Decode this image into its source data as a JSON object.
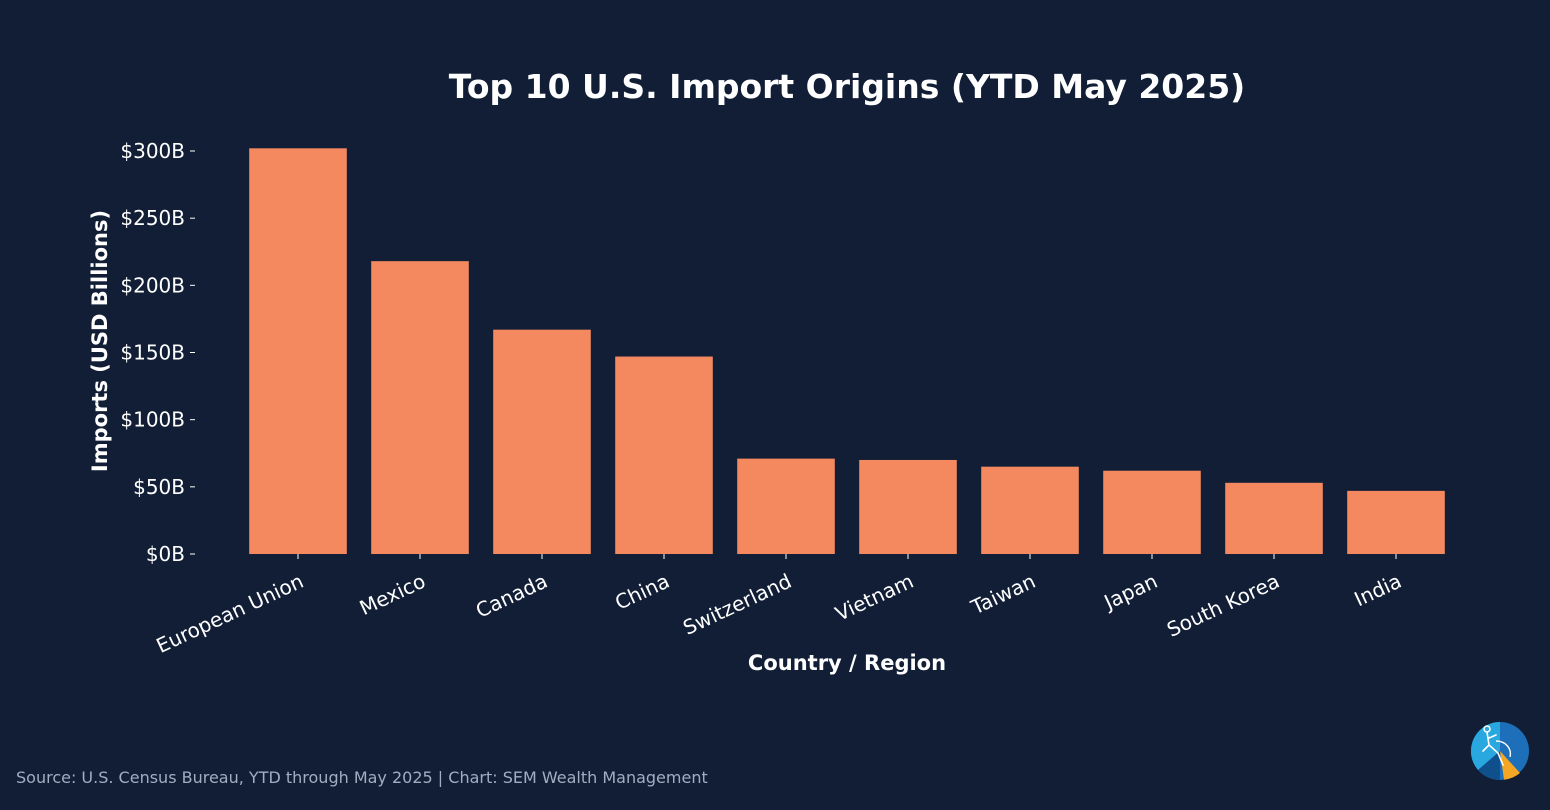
{
  "chart_data": {
    "type": "bar",
    "title": "Top 10 U.S. Import Origins (YTD May 2025)",
    "xlabel": "Country / Region",
    "ylabel": "Imports (USD Billions)",
    "categories": [
      "European Union",
      "Mexico",
      "Canada",
      "China",
      "Switzerland",
      "Vietnam",
      "Taiwan",
      "Japan",
      "South Korea",
      "India"
    ],
    "values": [
      302,
      218,
      167,
      147,
      71,
      70,
      65,
      62,
      53,
      47
    ],
    "ylim": [
      0,
      310
    ],
    "yticks": [
      0,
      50,
      100,
      150,
      200,
      250,
      300
    ],
    "ytick_labels": [
      "$0B",
      "$50B",
      "$100B",
      "$150B",
      "$200B",
      "$250B",
      "$300B"
    ],
    "bar_color": "#f4895f",
    "background": "#111e36",
    "grid": false
  },
  "footer": {
    "source": "Source: U.S. Census Bureau, YTD through May 2025 | Chart: SEM Wealth Management"
  },
  "logo": {
    "icon": "sem-logo-icon"
  }
}
